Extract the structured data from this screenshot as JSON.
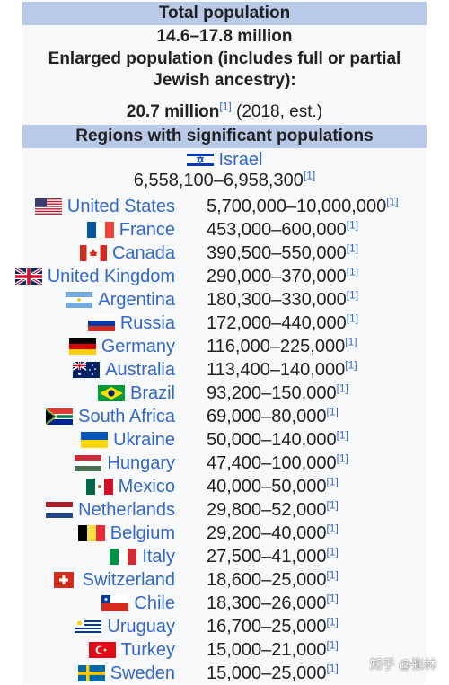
{
  "infobox": {
    "total_population_header": "Total population",
    "total_population_value": "14.6–17.8 million",
    "enlarged_label": "Enlarged population (includes full or partial Jewish ancestry):",
    "enlarged_value": "20.7 million",
    "enlarged_cite": "[1]",
    "enlarged_note": "(2018, est.)",
    "regions_header": "Regions with significant populations",
    "israel": {
      "name": "Israel",
      "value": "6,558,100–6,958,300",
      "cite": "[1]"
    },
    "rows": [
      {
        "country": "United States",
        "value": "5,700,000–10,000,000",
        "cite": "[1]",
        "flag": "us"
      },
      {
        "country": "France",
        "value": "453,000–600,000",
        "cite": "[1]",
        "flag": "fr"
      },
      {
        "country": "Canada",
        "value": "390,500–550,000",
        "cite": "[1]",
        "flag": "ca"
      },
      {
        "country": "United Kingdom",
        "value": "290,000–370,000",
        "cite": "[1]",
        "flag": "uk"
      },
      {
        "country": "Argentina",
        "value": "180,300–330,000",
        "cite": "[1]",
        "flag": "ar"
      },
      {
        "country": "Russia",
        "value": "172,000–440,000",
        "cite": "[1]",
        "flag": "ru"
      },
      {
        "country": "Germany",
        "value": "116,000–225,000",
        "cite": "[1]",
        "flag": "de"
      },
      {
        "country": "Australia",
        "value": "113,400–140,000",
        "cite": "[1]",
        "flag": "au"
      },
      {
        "country": "Brazil",
        "value": "93,200–150,000",
        "cite": "[1]",
        "flag": "br"
      },
      {
        "country": "South Africa",
        "value": "69,000–80,000",
        "cite": "[1]",
        "flag": "za"
      },
      {
        "country": "Ukraine",
        "value": "50,000–140,000",
        "cite": "[1]",
        "flag": "ua"
      },
      {
        "country": "Hungary",
        "value": "47,400–100,000",
        "cite": "[1]",
        "flag": "hu"
      },
      {
        "country": "Mexico",
        "value": "40,000–50,000",
        "cite": "[1]",
        "flag": "mx"
      },
      {
        "country": "Netherlands",
        "value": "29,800–52,000",
        "cite": "[1]",
        "flag": "nl"
      },
      {
        "country": "Belgium",
        "value": "29,200–40,000",
        "cite": "[1]",
        "flag": "be"
      },
      {
        "country": "Italy",
        "value": "27,500–41,000",
        "cite": "[1]",
        "flag": "it"
      },
      {
        "country": "Switzerland",
        "value": "18,600–25,000",
        "cite": "[1]",
        "flag": "ch"
      },
      {
        "country": "Chile",
        "value": "18,300–26,000",
        "cite": "[1]",
        "flag": "cl"
      },
      {
        "country": "Uruguay",
        "value": "16,700–25,000",
        "cite": "[1]",
        "flag": "uy"
      },
      {
        "country": "Turkey",
        "value": "15,000–21,000",
        "cite": "[1]",
        "flag": "tr"
      },
      {
        "country": "Sweden",
        "value": "15,000–25,000",
        "cite": "[1]",
        "flag": "se"
      }
    ]
  },
  "watermark": "知乎 @张林"
}
